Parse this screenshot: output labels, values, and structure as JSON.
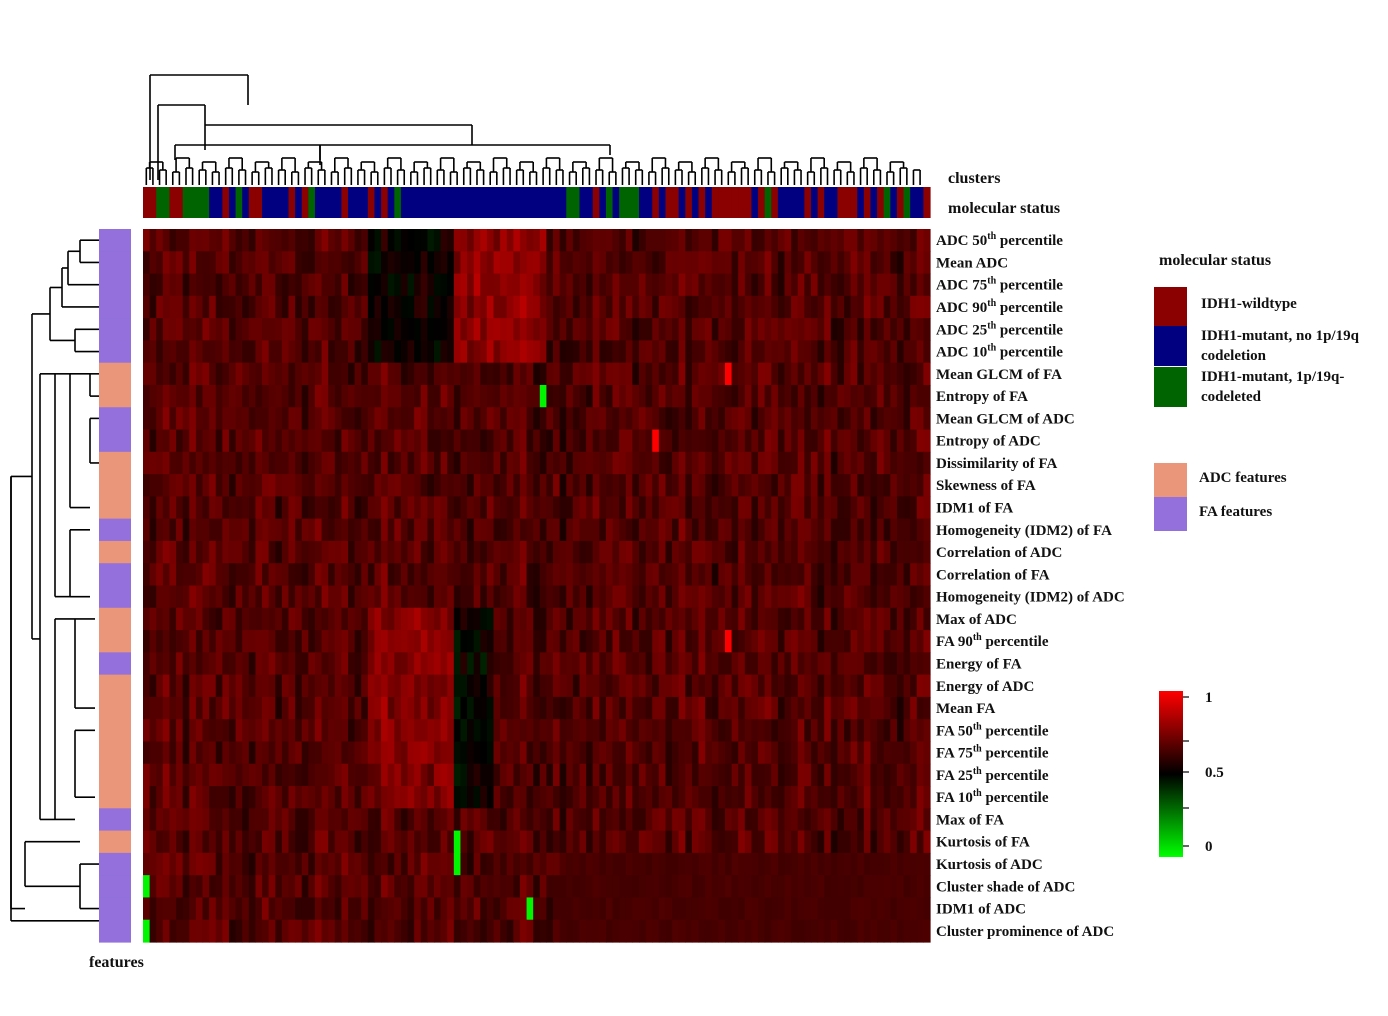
{
  "chart_data": {
    "type": "heatmap",
    "col_annotation_label": "clusters",
    "status_bar_label": "molecular status",
    "row_annotation_label": "features",
    "rows": [
      {
        "name": "ADC 50th percentile",
        "base": "ADC ",
        "ord": "50",
        "sup": "th",
        "tail": " percentile",
        "group": "FA"
      },
      {
        "name": "Mean ADC",
        "base": "Mean ADC",
        "group": "FA"
      },
      {
        "name": "ADC 75th percentile",
        "base": "ADC ",
        "ord": "75",
        "sup": "th",
        "tail": " percentile",
        "group": "FA"
      },
      {
        "name": "ADC 90th percentile",
        "base": "ADC ",
        "ord": "90",
        "sup": "th",
        "tail": " percentile",
        "group": "FA"
      },
      {
        "name": "ADC 25th percentile",
        "base": "ADC ",
        "ord": "25",
        "sup": "th",
        "tail": " percentile",
        "group": "FA"
      },
      {
        "name": "ADC 10th percentile",
        "base": "ADC ",
        "ord": "10",
        "sup": "th",
        "tail": " percentile",
        "group": "FA"
      },
      {
        "name": "Mean GLCM of FA",
        "base": "Mean GLCM of FA",
        "group": "ADC"
      },
      {
        "name": "Entropy of FA",
        "base": "Entropy  of FA",
        "group": "ADC"
      },
      {
        "name": "Mean GLCM of ADC",
        "base": "Mean GLCM of ADC",
        "group": "FA"
      },
      {
        "name": "Entropy of ADC",
        "base": "Entropy  of ADC",
        "group": "FA"
      },
      {
        "name": "Dissimilarity of FA",
        "base": "Dissimilarity  of FA",
        "group": "ADC"
      },
      {
        "name": "Skewness of FA",
        "base": "Skewness of FA",
        "group": "ADC"
      },
      {
        "name": "IDM1 of FA",
        "base": "IDM1 of FA",
        "group": "ADC"
      },
      {
        "name": "Homogeneity (IDM2) of FA",
        "base": "Homogeneity (IDM2) of FA",
        "group": "FA"
      },
      {
        "name": "Correlation of ADC",
        "base": "Correlation of ADC",
        "group": "ADC"
      },
      {
        "name": "Correlation of FA",
        "base": "Correlation of FA",
        "group": "FA"
      },
      {
        "name": "Homogeneity (IDM2) of ADC",
        "base": "Homogeneity  (IDM2) of ADC",
        "group": "FA"
      },
      {
        "name": "Max of ADC",
        "base": "Max of ADC",
        "group": "ADC"
      },
      {
        "name": "FA 90th percentile",
        "base": "FA ",
        "ord": "90",
        "sup": "th",
        "tail": " percentile",
        "group": "ADC"
      },
      {
        "name": "Energy of FA",
        "base": "Energy of FA",
        "group": "FA"
      },
      {
        "name": "Energy of ADC",
        "base": "Energy of ADC",
        "group": "ADC"
      },
      {
        "name": "Mean FA",
        "base": "Mean FA",
        "group": "ADC"
      },
      {
        "name": "FA 50th percentile",
        "base": "FA ",
        "ord": "50",
        "sup": "th",
        "tail": " percentile",
        "group": "ADC"
      },
      {
        "name": "FA 75th percentile",
        "base": "FA ",
        "ord": "75",
        "sup": "th",
        "tail": " percentile",
        "group": "ADC"
      },
      {
        "name": "FA 25th percentile",
        "base": "FA ",
        "ord": "25",
        "sup": "th",
        "tail": " percentile",
        "group": "ADC"
      },
      {
        "name": "FA 10th percentile",
        "base": "FA ",
        "ord": "10",
        "sup": "th",
        "tail": " percentile",
        "group": "ADC"
      },
      {
        "name": "Max of FA",
        "base": "Max of FA",
        "group": "FA"
      },
      {
        "name": "Kurtosis of FA",
        "base": "Kurtosis of FA",
        "group": "ADC"
      },
      {
        "name": "Kurtosis of ADC",
        "base": "Kurtosis of ADC",
        "group": "FA"
      },
      {
        "name": "Cluster shade of ADC",
        "base": "Cluster shade of ADC",
        "group": "FA"
      },
      {
        "name": "IDM1 of ADC",
        "base": "IDM1  of ADC",
        "group": "FA"
      },
      {
        "name": "Cluster prominence of ADC",
        "base": "Cluster prominence of ADC",
        "group": "FA"
      }
    ],
    "molecular_status_columns": "WWGGWWGGGGBBWBGBWWBBBBWBWGBBBBWBBBWBWBGBBBBBBBBBBBBBBBBBBBBBBBBBGGBBWBGBGGGBBWBWWBWBWBWWWWWWBWGWBBBBWBWBBWWWBWBWGBWGBBW",
    "molecular_status_legend": {
      "title": "molecular status",
      "items": [
        {
          "key": "W",
          "label_line1": "IDH1-wildtype",
          "label_line2": "",
          "color": "#8b0000"
        },
        {
          "key": "B",
          "label_line1": "IDH1-mutant, no 1p/19q",
          "label_line2": "codeletion",
          "color": "#000080"
        },
        {
          "key": "G",
          "label_line1": "IDH1-mutant,  1p/19q-",
          "label_line2": "codeleted",
          "color": "#006400"
        }
      ]
    },
    "feature_legend": {
      "items": [
        {
          "key": "ADC",
          "label": "ADC features",
          "color": "#e9967a"
        },
        {
          "key": "FA",
          "label": "FA features",
          "color": "#9370db"
        }
      ]
    },
    "color_scale": {
      "min": 0,
      "mid": 0.5,
      "max": 1,
      "tick_labels": [
        "1",
        "0.5",
        "0"
      ],
      "low_color": "#00ff00",
      "mid_color": "#000000",
      "high_color": "#ff0000"
    },
    "grid": false,
    "legend_placement": "right"
  }
}
